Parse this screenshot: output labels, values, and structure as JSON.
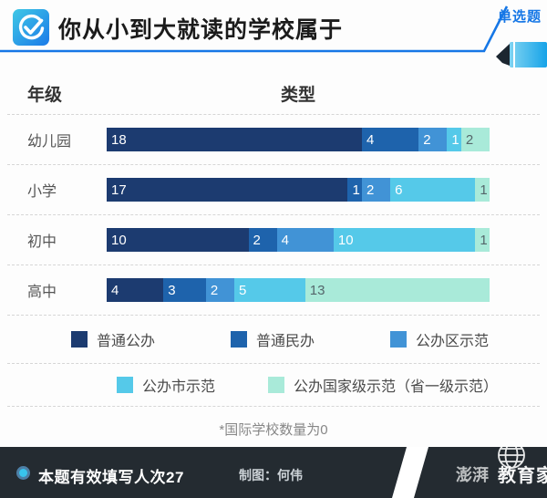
{
  "header": {
    "title": "你从小到大就读的学校属于",
    "badge": "单选题",
    "accent_color": "#1677e6"
  },
  "chart_data": {
    "type": "bar",
    "stacked": true,
    "orientation": "horizontal",
    "title": "你从小到大就读的学校属于",
    "ylabel": "年级",
    "xlabel": "类型",
    "legend_position": "bottom",
    "categories": [
      "幼儿园",
      "小学",
      "初中",
      "高中"
    ],
    "series": [
      {
        "name": "普通公办",
        "color": "#1c3b70",
        "values": [
          18,
          17,
          10,
          4
        ]
      },
      {
        "name": "普通民办",
        "color": "#1e63ac",
        "values": [
          4,
          1,
          2,
          3
        ]
      },
      {
        "name": "公办区示范",
        "color": "#4193d6",
        "values": [
          2,
          2,
          4,
          2
        ]
      },
      {
        "name": "公办市示范",
        "color": "#55c9e9",
        "values": [
          1,
          6,
          10,
          5
        ]
      },
      {
        "name": "公办国家级示范（省一级示范）",
        "color": "#a9ead9",
        "values": [
          2,
          1,
          1,
          13
        ]
      }
    ],
    "row_total": 27,
    "value_label_colors": {
      "on_dark": "#ffffff",
      "on_light": "#55666b"
    }
  },
  "note": "*国际学校数量为0",
  "footer": {
    "respondents": "本题有效填写人次27",
    "credit": "制图：何伟",
    "bg": "#242b31"
  },
  "watermark": {
    "primary": "教育家",
    "secondary": "澎湃"
  }
}
